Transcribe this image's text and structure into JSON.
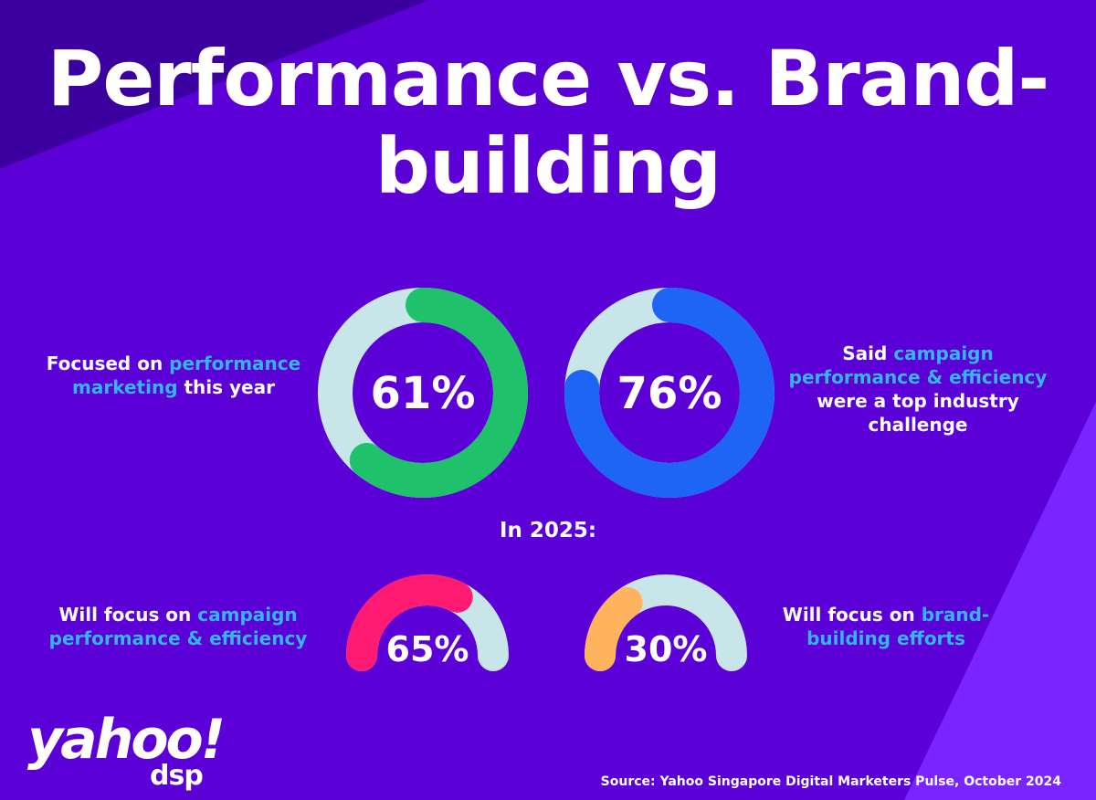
{
  "title": "Performance vs. Brand-building",
  "colors": {
    "background": "#5b00d6",
    "highlight_text": "#35b6f2",
    "track": "#c8e6ea",
    "green": "#1fc26a",
    "blue": "#1e64f5",
    "pink": "#ff1a72",
    "orange": "#ffb35c"
  },
  "stats": [
    {
      "pre": "Focused on ",
      "highlight": "performance marketing",
      "post": " this year"
    },
    {
      "pre": "Said ",
      "highlight": "campaign performance & efficiency",
      "post": " were a top industry challenge"
    }
  ],
  "section_label": "In 2025:",
  "outlook": [
    {
      "pre": "Will focus on ",
      "highlight": "campaign performance & efficiency",
      "post": ""
    },
    {
      "pre": "Will focus on ",
      "highlight": "brand-building efforts",
      "post": ""
    }
  ],
  "chart_data": [
    {
      "type": "donut",
      "value": 61,
      "label": "61%",
      "color_key": "green"
    },
    {
      "type": "donut",
      "value": 76,
      "label": "76%",
      "color_key": "blue"
    },
    {
      "type": "gauge",
      "value": 65,
      "label": "65%",
      "color_key": "pink"
    },
    {
      "type": "gauge",
      "value": 30,
      "label": "30%",
      "color_key": "orange"
    }
  ],
  "logo": {
    "wordmark": "yahoo!",
    "sub": "dsp",
    "icon": "yahoo-dsp-logo"
  },
  "source": "Source: Yahoo Singapore Digital Marketers Pulse, October 2024"
}
